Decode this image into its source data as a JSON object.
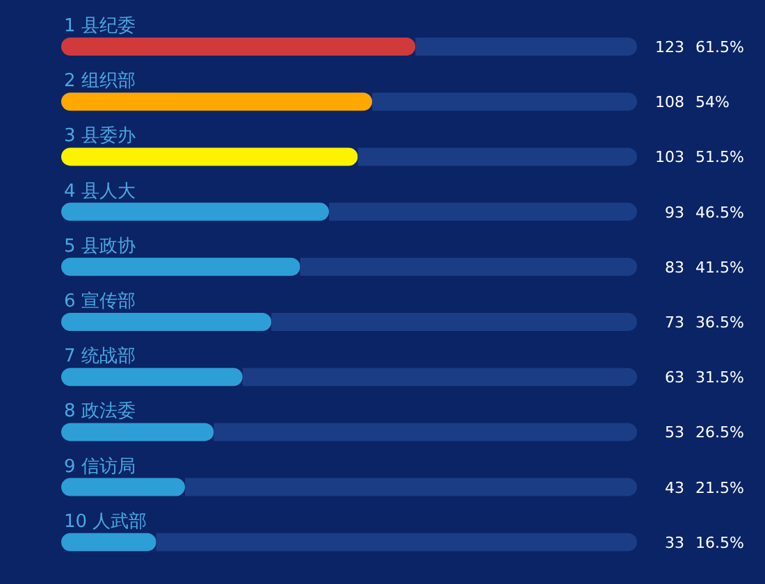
{
  "chart_data": {
    "type": "bar",
    "orientation": "horizontal",
    "stacked": true,
    "categories": [
      "1 县纪委",
      "2 组织部",
      "3 县委办",
      "4 县人大",
      "5 县政协",
      "6 宣传部",
      "7 统战部",
      "8 政法委",
      "9 信访局",
      "10 人武部"
    ],
    "series": [
      {
        "colors": [
          "#d13a3a",
          "#ffa800",
          "#fff200",
          "#2e9ed6",
          "#2e9ed6",
          "#2e9ed6",
          "#2e9ed6",
          "#2e9ed6",
          "#2e9ed6",
          "#2e9ed6"
        ],
        "values": [
          123,
          108,
          103,
          93,
          83,
          73,
          63,
          53,
          43,
          33
        ],
        "value_labels": [
          "123",
          "108",
          "103",
          "93",
          "83",
          "73",
          "63",
          "53",
          "43",
          "33"
        ]
      },
      {
        "color": "#1b3d85",
        "values": [
          77,
          92,
          97,
          107,
          117,
          127,
          137,
          147,
          157,
          167
        ]
      }
    ],
    "xlim": [
      0,
      200
    ],
    "annotations": [
      "61.5%",
      "54%",
      "51.5%",
      "46.5%",
      "41.5%",
      "36.5%",
      "31.5%",
      "26.5%",
      "21.5%",
      "16.5%"
    ]
  }
}
